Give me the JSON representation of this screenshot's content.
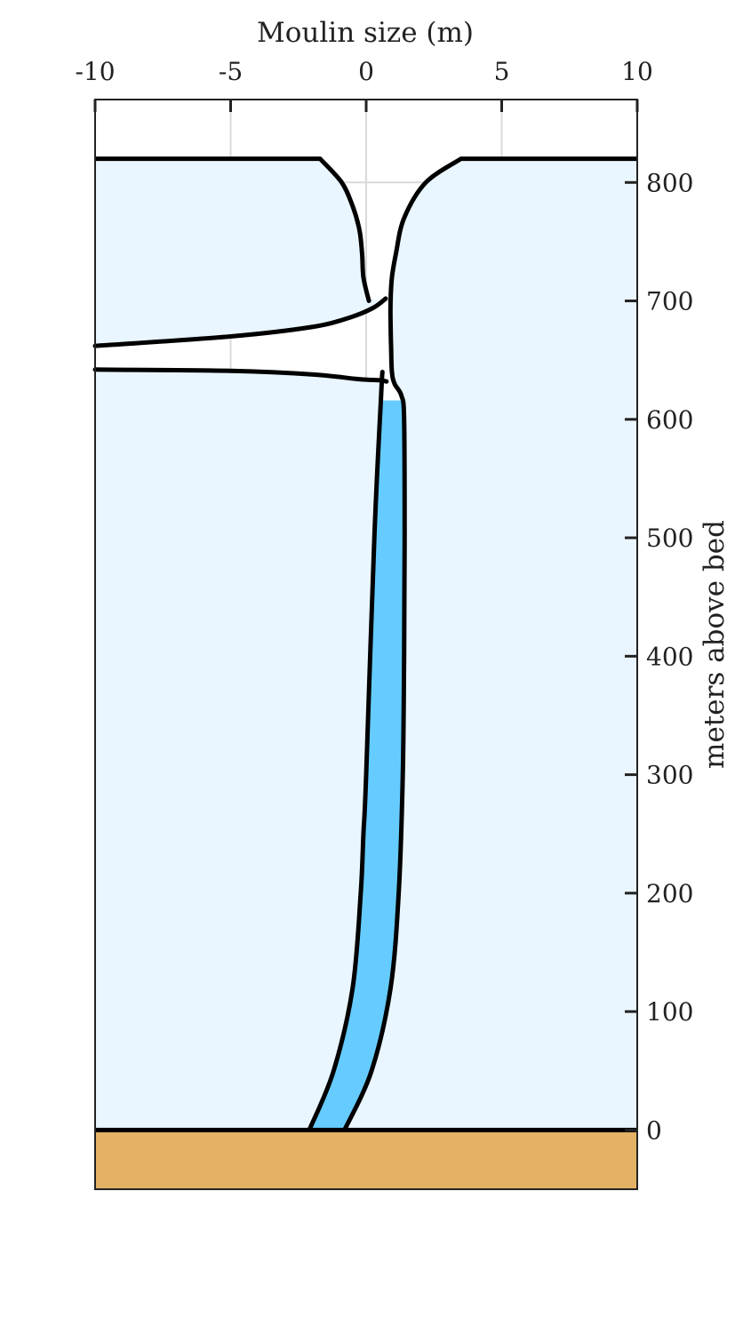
{
  "chart_data": {
    "type": "area",
    "title": "",
    "xlabel": "Moulin size (m)",
    "ylabel": "meters above bed",
    "xlim": [
      -10,
      10
    ],
    "ylim": [
      -50,
      870
    ],
    "x_ticks": [
      -10,
      -5,
      0,
      5,
      10
    ],
    "x_tick_labels": [
      "-10",
      "-5",
      "0",
      "5",
      "10"
    ],
    "y_ticks": [
      0,
      100,
      200,
      300,
      400,
      500,
      600,
      700,
      800
    ],
    "y_tick_labels": [
      "0",
      "100",
      "200",
      "300",
      "400",
      "500",
      "600",
      "700",
      "800"
    ],
    "x_axis_position": "top",
    "y_axis_position": "right",
    "grid": true,
    "ice_surface_elevation": 820,
    "bed_elevation": 0,
    "water_level": 616,
    "colors": {
      "ice": "#eaf6ff",
      "water": "#66ccff",
      "bed": "#e3b265",
      "outline": "#000000",
      "grid": "#d9d9d9",
      "axes": "#222222"
    },
    "series": [
      {
        "role": "moulin-left-wall",
        "x": [
          -1.7,
          -0.9,
          -0.5,
          -0.25,
          -0.15,
          -0.1,
          0.1,
          0.4,
          0.55,
          0.6,
          0.55,
          0.3,
          0.0,
          -0.1,
          -0.2,
          -0.5,
          -1.2,
          -2.1
        ],
        "y": [
          820,
          800,
          780,
          760,
          740,
          720,
          700,
          680,
          660,
          640,
          620,
          500,
          300,
          250,
          200,
          120,
          50,
          0
        ]
      },
      {
        "role": "moulin-right-wall",
        "x": [
          3.5,
          2.2,
          1.4,
          1.1,
          0.95,
          0.9,
          0.9,
          0.92,
          0.95,
          1.05,
          1.3,
          1.4,
          1.42,
          1.4,
          1.35,
          1.2,
          0.9,
          0.2,
          -0.8
        ],
        "y": [
          820,
          800,
          770,
          740,
          720,
          700,
          680,
          660,
          640,
          630,
          620,
          600,
          500,
          400,
          300,
          200,
          120,
          50,
          0
        ]
      },
      {
        "role": "crevasse-upper-edge",
        "x": [
          -10,
          -5,
          -2,
          -0.6,
          0.25,
          0.72
        ],
        "y": [
          662,
          670,
          678,
          686,
          694,
          702
        ]
      },
      {
        "role": "crevasse-lower-edge",
        "x": [
          -10,
          -5,
          -2,
          -0.3,
          0.5,
          0.75
        ],
        "y": [
          642,
          641,
          638,
          634,
          633,
          632
        ]
      }
    ]
  }
}
